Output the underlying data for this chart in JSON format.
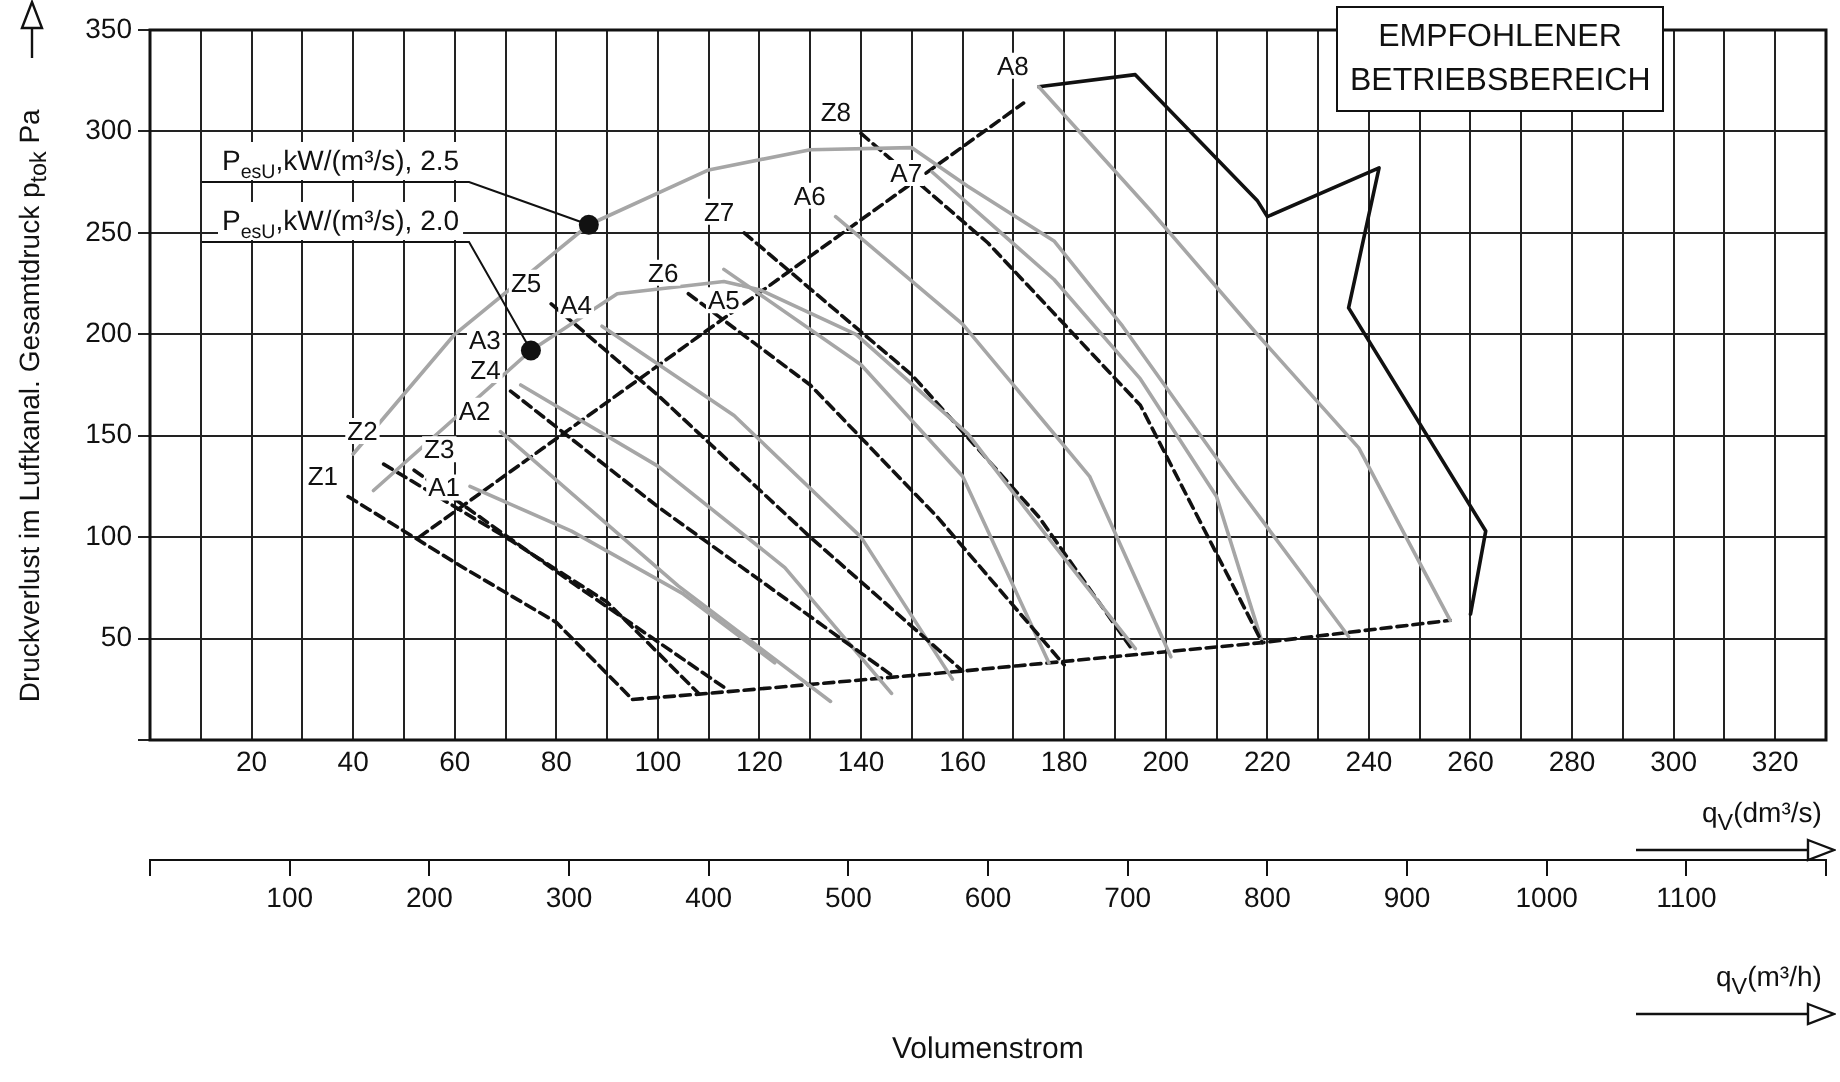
{
  "chart_data": {
    "type": "line",
    "xlabel": "q$_{V}$(dm³/s)",
    "x2label": "q$_{V}$(m³/h)",
    "ylabel": "Druckverlust im Luftkanal. Gesamtdruck p$_{tok}$ Pa",
    "xlim": [
      0,
      330
    ],
    "ylim": [
      0,
      350
    ],
    "x2lim": [
      0,
      1200
    ],
    "xticks": [
      {
        "value": 0,
        "label": null
      },
      {
        "value": 10,
        "label": null
      },
      20,
      {
        "value": 30,
        "label": null
      },
      40,
      {
        "value": 50,
        "label": null
      },
      60,
      {
        "value": 70,
        "label": null
      },
      80,
      {
        "value": 90,
        "label": null
      },
      100,
      {
        "value": 110,
        "label": null
      },
      120,
      {
        "value": 130,
        "label": null
      },
      140,
      {
        "value": 150,
        "label": null
      },
      160,
      {
        "value": 170,
        "label": null
      },
      180,
      {
        "value": 190,
        "label": null
      },
      200,
      {
        "value": 210,
        "label": null
      },
      220,
      {
        "value": 230,
        "label": null
      },
      240,
      {
        "value": 250,
        "label": null
      },
      260,
      {
        "value": 270,
        "label": null
      },
      280,
      {
        "value": 290,
        "label": null
      },
      300,
      {
        "value": 310,
        "label": null
      },
      320
    ],
    "yticks": [
      {
        "value": 0,
        "label": null
      },
      50,
      100,
      150,
      200,
      250,
      300,
      350
    ],
    "x2ticks": [
      {
        "value": 0,
        "label": null
      },
      100,
      200,
      300,
      400,
      500,
      600,
      700,
      800,
      900,
      1000,
      1100,
      {
        "value": 1200,
        "label": null
      }
    ],
    "grid": true,
    "legend": false,
    "marker": "none",
    "line_style": "solid",
    "series": [
      {
        "color": "#a6a6a6",
        "x": [
          40,
          60,
          86.4,
          110,
          130,
          150,
          161,
          178,
          191.5,
          214,
          236
        ],
        "values": [
          141,
          200,
          254,
          281,
          291,
          292,
          273,
          246,
          204,
          125,
          51
        ]
      },
      {
        "color": "#a6a6a6",
        "x": [
          44,
          75,
          92,
          113,
          120,
          139,
          161,
          178,
          194
        ],
        "values": [
          123,
          192,
          220,
          226,
          222,
          200,
          151,
          96,
          45
        ]
      },
      {
        "name": "Z1",
        "color": "#111111",
        "line_style": "dashed",
        "x": [
          39,
          61,
          80,
          95
        ],
        "values": [
          120,
          86,
          58,
          20
        ]
      },
      {
        "name": "Z2",
        "color": "#111111",
        "line_style": "dashed",
        "x": [
          46,
          70,
          90,
          108
        ],
        "values": [
          136,
          100,
          68,
          23
        ]
      },
      {
        "name": "Z3",
        "color": "#111111",
        "line_style": "dashed",
        "x": [
          52,
          84,
          113
        ],
        "values": [
          133,
          76,
          26
        ]
      },
      {
        "name": "Z4",
        "color": "#111111",
        "line_style": "dashed",
        "x": [
          71,
          100,
          146
        ],
        "values": [
          172,
          115,
          32
        ]
      },
      {
        "name": "Z5",
        "color": "#111111",
        "line_style": "dashed",
        "x": [
          79,
          100,
          130,
          160
        ],
        "values": [
          215,
          170,
          100,
          34
        ]
      },
      {
        "name": "Z6",
        "color": "#111111",
        "line_style": "dashed",
        "x": [
          106,
          130,
          155,
          180
        ],
        "values": [
          220,
          175,
          110,
          37
        ]
      },
      {
        "name": "Z7",
        "color": "#111111",
        "line_style": "dashed",
        "x": [
          117,
          150,
          175,
          193
        ],
        "values": [
          250,
          180,
          110,
          46
        ]
      },
      {
        "name": "Z8",
        "color": "#111111",
        "line_style": "dashed",
        "x": [
          140,
          165,
          195,
          219
        ],
        "values": [
          299,
          245,
          165,
          48
        ]
      },
      {
        "name": "A1",
        "color": "#a6a6a6",
        "x": [
          63,
          83,
          105,
          123
        ],
        "values": [
          125,
          103,
          72,
          38
        ]
      },
      {
        "name": "A2",
        "color": "#a6a6a6",
        "x": [
          69,
          104,
          134
        ],
        "values": [
          152,
          76,
          19
        ]
      },
      {
        "name": "A3",
        "color": "#a6a6a6",
        "x": [
          73,
          100,
          125,
          146
        ],
        "values": [
          175,
          135,
          85,
          23
        ]
      },
      {
        "name": "A4",
        "color": "#a6a6a6",
        "x": [
          89,
          115,
          140,
          158
        ],
        "values": [
          204,
          160,
          100,
          30
        ]
      },
      {
        "name": "A5",
        "color": "#a6a6a6",
        "x": [
          113,
          140,
          160,
          177
        ],
        "values": [
          232,
          185,
          130,
          38
        ]
      },
      {
        "name": "A6",
        "color": "#a6a6a6",
        "x": [
          135,
          160,
          185,
          201
        ],
        "values": [
          258,
          205,
          130,
          41
        ]
      },
      {
        "name": "A7",
        "color": "#a6a6a6",
        "x": [
          154,
          178,
          195,
          210,
          219
        ],
        "values": [
          280,
          227,
          178,
          120,
          48
        ]
      },
      {
        "name": "A8",
        "color": "#a6a6a6",
        "x": [
          175,
          197,
          218,
          238,
          256
        ],
        "values": [
          322,
          261,
          200,
          144,
          59
        ]
      },
      {
        "color": "#111111",
        "line_style": "dashed",
        "x": [
          53,
          172
        ],
        "values": [
          100,
          314
        ]
      },
      {
        "color": "#111111",
        "line_style": "dashed",
        "x": [
          95,
          110,
          160,
          219,
          256
        ],
        "values": [
          20,
          23,
          34,
          48,
          59
        ]
      },
      {
        "color": "#111111",
        "x": [
          175,
          194,
          218,
          220,
          242,
          236,
          263,
          260
        ],
        "values": [
          322,
          328,
          266,
          258,
          282,
          213,
          103,
          62
        ]
      }
    ],
    "annotations": [
      {
        "text": "P$_{esU}$,kW/(m³/s), 2.5",
        "x": 86.4,
        "y": 254
      },
      {
        "text": "P$_{esU}$,kW/(m³/s), 2.0",
        "x": 75,
        "y": 192
      },
      "EMPFOHLENER BETRIEBSBEREICH",
      "Volumenstrom"
    ]
  }
}
